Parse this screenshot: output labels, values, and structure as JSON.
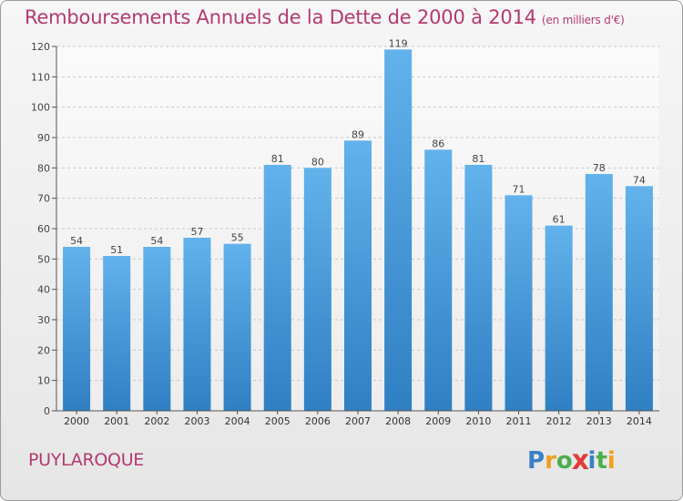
{
  "chart_data": {
    "type": "bar",
    "title": "Remboursements Annuels de la Dette de 2000 à 2014",
    "unit_label": "(en milliers d'€)",
    "categories": [
      "2000",
      "2001",
      "2002",
      "2003",
      "2004",
      "2005",
      "2006",
      "2007",
      "2008",
      "2009",
      "2010",
      "2011",
      "2012",
      "2013",
      "2014"
    ],
    "values": [
      54,
      51,
      54,
      57,
      55,
      81,
      80,
      89,
      119,
      86,
      81,
      71,
      61,
      78,
      74
    ],
    "ylim": [
      0,
      120
    ],
    "yticks": [
      0,
      10,
      20,
      30,
      40,
      50,
      60,
      70,
      80,
      90,
      100,
      110,
      120
    ],
    "xlabel": "",
    "ylabel": "",
    "grid": true,
    "bar_color": "#4a9fe0"
  },
  "commune": "PUYLAROQUE",
  "logo": {
    "text": "Proxiti",
    "letters": [
      {
        "ch": "P",
        "color": "#3a7fc4"
      },
      {
        "ch": "r",
        "color": "#f0a020"
      },
      {
        "ch": "o",
        "color": "#4cae4c"
      },
      {
        "ch": "x",
        "color": "#e03c3c"
      },
      {
        "ch": "i",
        "color": "#3a7fc4"
      },
      {
        "ch": "t",
        "color": "#4cae4c"
      },
      {
        "ch": "i",
        "color": "#f0a020"
      }
    ]
  }
}
